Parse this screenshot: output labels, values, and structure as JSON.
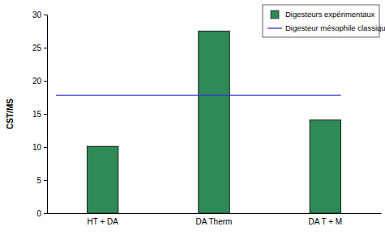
{
  "chart_data": {
    "type": "bar",
    "y_label": "CST/MS",
    "categories": [
      "HT + DA",
      "DA Therm",
      "DA T + M"
    ],
    "series": [
      {
        "name": "Digesteurs expérimentaux",
        "type": "bar",
        "color": "#2e8b57",
        "values": [
          10.1,
          27.5,
          14.1
        ]
      },
      {
        "name": "Digesteur mésophile classique",
        "type": "line",
        "color": "#3333cc",
        "values": [
          17.8,
          17.8,
          17.8
        ]
      }
    ],
    "ylim": [
      0,
      30
    ],
    "yticks": [
      0,
      5,
      10,
      15,
      20,
      25,
      30
    ],
    "legend": "top-right"
  }
}
